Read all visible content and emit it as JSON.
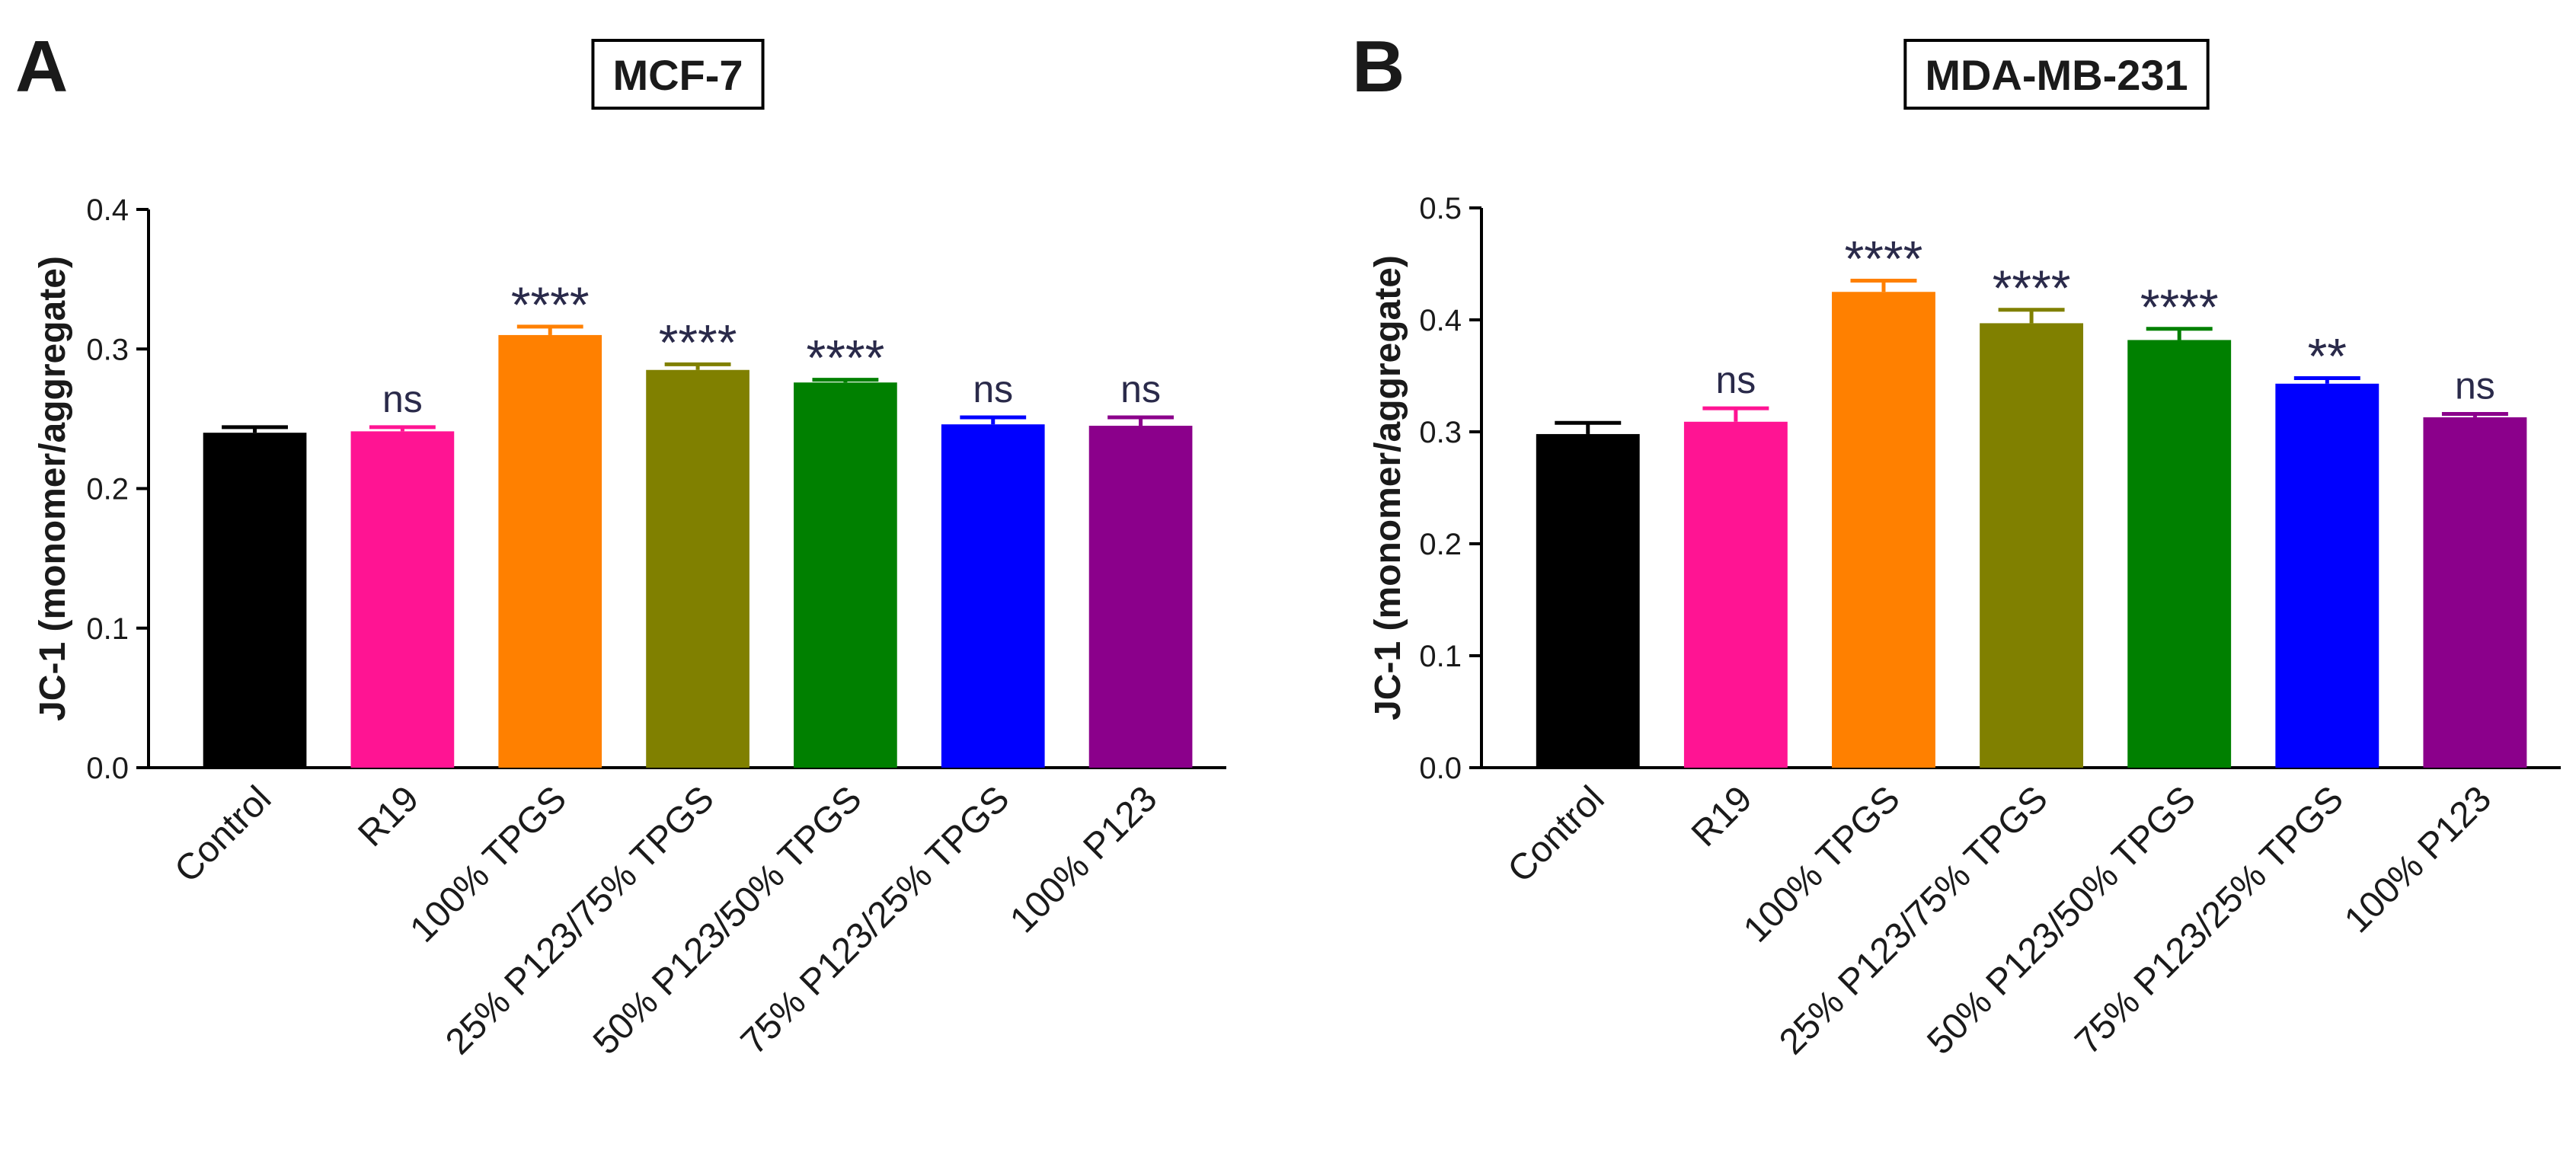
{
  "chart_data": [
    {
      "type": "bar",
      "panel": "A",
      "title": "MCF-7",
      "ylabel": "JC-1 (monomer/aggregate)",
      "xlabel": "",
      "ylim": [
        0,
        0.4
      ],
      "yticks": [
        "0.0",
        "0.1",
        "0.2",
        "0.3",
        "0.4"
      ],
      "categories": [
        "Control",
        "R19",
        "100% TPGS",
        "25% P123/75% TPGS",
        "50% P123/50% TPGS",
        "75% P123/25% TPGS",
        "100% P123"
      ],
      "values": [
        0.24,
        0.241,
        0.31,
        0.285,
        0.276,
        0.246,
        0.245
      ],
      "errors": [
        0.004,
        0.003,
        0.006,
        0.004,
        0.002,
        0.005,
        0.006
      ],
      "significance": [
        "",
        "ns",
        "****",
        "****",
        "****",
        "ns",
        "ns"
      ],
      "colors": [
        "#000000",
        "#ff1493",
        "#ff8000",
        "#808000",
        "#008000",
        "#0000ff",
        "#8b008b"
      ]
    },
    {
      "type": "bar",
      "panel": "B",
      "title": "MDA-MB-231",
      "ylabel": "JC-1 (monomer/aggregate)",
      "xlabel": "",
      "ylim": [
        0,
        0.5
      ],
      "yticks": [
        "0.0",
        "0.1",
        "0.2",
        "0.3",
        "0.4",
        "0.5"
      ],
      "categories": [
        "Control",
        "R19",
        "100% TPGS",
        "25% P123/75% TPGS",
        "50% P123/50% TPGS",
        "75% P123/25% TPGS",
        "100% P123"
      ],
      "values": [
        0.298,
        0.309,
        0.425,
        0.397,
        0.382,
        0.343,
        0.313
      ],
      "errors": [
        0.01,
        0.012,
        0.01,
        0.012,
        0.01,
        0.005,
        0.003
      ],
      "significance": [
        "",
        "ns",
        "****",
        "****",
        "****",
        "**",
        "ns"
      ],
      "colors": [
        "#000000",
        "#ff1493",
        "#ff8000",
        "#808000",
        "#008000",
        "#0000ff",
        "#8b008b"
      ]
    }
  ]
}
